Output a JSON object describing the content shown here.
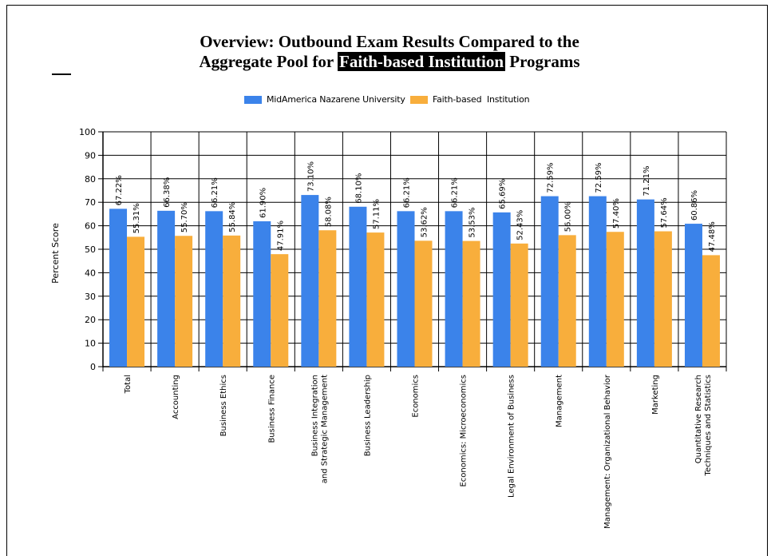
{
  "header": {
    "title_line1": "Overview: Outbound Exam Results Compared to the",
    "title_line2_prefix": "Aggregate Pool for",
    "title_line2_highlight": "Faith-based Institution",
    "title_line2_suffix": "Programs"
  },
  "colors": {
    "series_a": "#3b83ea",
    "series_b": "#f8ae3c",
    "grid": "#000000"
  },
  "chart_data": {
    "type": "bar",
    "title": "Overview: Outbound Exam Results Compared to the Aggregate Pool for Faith-based Institution Programs",
    "ylabel": "Percent Score",
    "xlabel": "",
    "ylim": [
      0,
      100
    ],
    "yticks": [
      0,
      10,
      20,
      30,
      40,
      50,
      60,
      70,
      80,
      90,
      100
    ],
    "grid": true,
    "legend_position": "top-center",
    "categories": [
      "Total",
      "Accounting",
      "Business Ethics",
      "Business Finance",
      "Business Integration\nand Strategic Management",
      "Business Leadership",
      "Economics",
      "Economics: Microeconomics",
      "Legal Environment of Business",
      "Management",
      "Management: Organizational Behavior",
      "Marketing",
      "Quantitative Research\nTechniques and Statistics"
    ],
    "series": [
      {
        "name": "MidAmerica Nazarene University",
        "values": [
          67.22,
          66.38,
          66.21,
          61.9,
          73.1,
          68.1,
          66.21,
          66.21,
          65.69,
          72.59,
          72.59,
          71.21,
          60.86
        ],
        "labels": [
          "67.22%",
          "66.38%",
          "66.21%",
          "61.90%",
          "73.10%",
          "68.10%",
          "66.21%",
          "66.21%",
          "65.69%",
          "72.59%",
          "72.59%",
          "71.21%",
          "60.86%"
        ]
      },
      {
        "name": "Faith-based  Institution",
        "values": [
          55.31,
          55.7,
          55.84,
          47.91,
          58.08,
          57.11,
          53.62,
          53.53,
          52.43,
          56.0,
          57.4,
          57.64,
          47.48
        ],
        "labels": [
          "55.31%",
          "55.70%",
          "55.84%",
          "47.91%",
          "58.08%",
          "57.11%",
          "53.62%",
          "53.53%",
          "52.43%",
          "56.00%",
          "57.40%",
          "57.64%",
          "47.48%"
        ]
      }
    ]
  }
}
